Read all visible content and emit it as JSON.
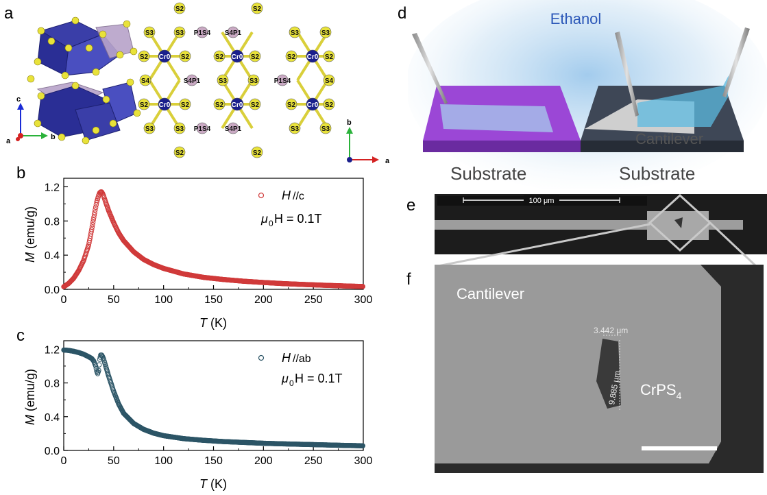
{
  "panels": {
    "a": "a",
    "b": "b",
    "c": "c",
    "d": "d",
    "e": "e",
    "f": "f"
  },
  "structure": {
    "axes_3d": {
      "c": "c",
      "a": "a",
      "b": "b"
    },
    "axes_2d": {
      "b": "b",
      "a": "a"
    },
    "atom_rows": [
      [
        "S2",
        "S2"
      ],
      [
        "S3",
        "S3",
        "P1S4",
        "S4P1",
        "S3",
        "S3"
      ],
      [
        "S2",
        "Cr0",
        "S2",
        "S2",
        "Cr0",
        "S2",
        "S2",
        "Cr0",
        "S2"
      ],
      [
        "S4",
        "S4P1",
        "S3",
        "S3",
        "P1S4",
        "S4"
      ],
      [
        "S2",
        "Cr0",
        "S2",
        "S2",
        "Cr0",
        "S2",
        "S2",
        "Cr0",
        "S2"
      ],
      [
        "S3",
        "S3",
        "P1S4",
        "S4P1",
        "S3",
        "S3"
      ],
      [
        "S2",
        "S2"
      ]
    ],
    "colors": {
      "cr": "#1a1f8c",
      "s": "#e8e23a",
      "p": "#c9a9c3",
      "octa": "#2b2f9c"
    }
  },
  "plot_b": {
    "legend_H": "H",
    "legend_dir": " //c",
    "legend_field_mu": "μ",
    "legend_field_sub": "0",
    "legend_field_rest": "H = 0.1T",
    "ylabel_M": "M",
    "ylabel_unit": " (emu/g)",
    "xlabel_T": "T",
    "xlabel_unit": " (K)",
    "yticks": [
      "0.0",
      "0.4",
      "0.8",
      "1.2"
    ],
    "xticks": [
      "0",
      "50",
      "100",
      "150",
      "200",
      "250",
      "300"
    ]
  },
  "plot_c": {
    "legend_H": "H",
    "legend_dir": " //ab",
    "legend_field_mu": "μ",
    "legend_field_sub": "0",
    "legend_field_rest": "H = 0.1T",
    "ylabel_M": "M",
    "ylabel_unit": " (emu/g)",
    "xlabel_T": "T",
    "xlabel_unit": " (K)",
    "yticks": [
      "0.0",
      "0.4",
      "0.8",
      "1.2"
    ],
    "xticks": [
      "0",
      "50",
      "100",
      "150",
      "200",
      "250",
      "300"
    ]
  },
  "schematic": {
    "ethanol": "Ethanol",
    "substrate_left": "Substrate",
    "substrate_right": "Substrate",
    "cantilever": "Cantilever"
  },
  "sem_e": {
    "scale": "100 μm"
  },
  "sem_f": {
    "cantilever": "Cantilever",
    "material_main": "CrPS",
    "material_sub": "4",
    "width_measure": "3.442 μm",
    "length_measure": "9.885 μm"
  },
  "chart_data": [
    {
      "type": "scatter",
      "title": "",
      "xlabel": "T (K)",
      "ylabel": "M (emu/g)",
      "xlim": [
        0,
        300
      ],
      "ylim": [
        0,
        1.3
      ],
      "legend": "H //c, μ0H = 0.1T",
      "marker_color": "#d03a3a",
      "x": [
        0,
        5,
        10,
        15,
        20,
        25,
        28,
        31,
        33,
        35,
        36,
        37,
        38,
        39,
        40,
        42,
        45,
        50,
        55,
        60,
        70,
        80,
        90,
        100,
        120,
        140,
        160,
        180,
        200,
        220,
        240,
        260,
        280,
        300
      ],
      "y": [
        0.03,
        0.07,
        0.13,
        0.22,
        0.34,
        0.52,
        0.7,
        0.9,
        1.02,
        1.1,
        1.13,
        1.14,
        1.14,
        1.12,
        1.09,
        1.02,
        0.92,
        0.78,
        0.66,
        0.57,
        0.44,
        0.35,
        0.29,
        0.245,
        0.18,
        0.14,
        0.115,
        0.095,
        0.08,
        0.067,
        0.057,
        0.048,
        0.04,
        0.033
      ]
    },
    {
      "type": "scatter",
      "title": "",
      "xlabel": "T (K)",
      "ylabel": "M (emu/g)",
      "xlim": [
        0,
        300
      ],
      "ylim": [
        0,
        1.3
      ],
      "legend": "H //ab, μ0H = 0.1T",
      "marker_color": "#2c5566",
      "x": [
        0,
        5,
        10,
        15,
        20,
        25,
        28,
        30,
        32,
        33,
        34,
        35,
        36,
        37,
        38,
        39,
        40,
        42,
        45,
        50,
        55,
        60,
        70,
        80,
        90,
        100,
        120,
        140,
        160,
        180,
        200,
        220,
        240,
        260,
        280,
        300
      ],
      "y": [
        1.19,
        1.185,
        1.175,
        1.16,
        1.14,
        1.11,
        1.09,
        1.06,
        1.0,
        0.94,
        0.91,
        0.95,
        1.08,
        1.13,
        1.13,
        1.11,
        1.08,
        1.0,
        0.88,
        0.7,
        0.55,
        0.44,
        0.32,
        0.25,
        0.205,
        0.175,
        0.14,
        0.12,
        0.105,
        0.095,
        0.085,
        0.078,
        0.072,
        0.066,
        0.06,
        0.055
      ]
    }
  ]
}
